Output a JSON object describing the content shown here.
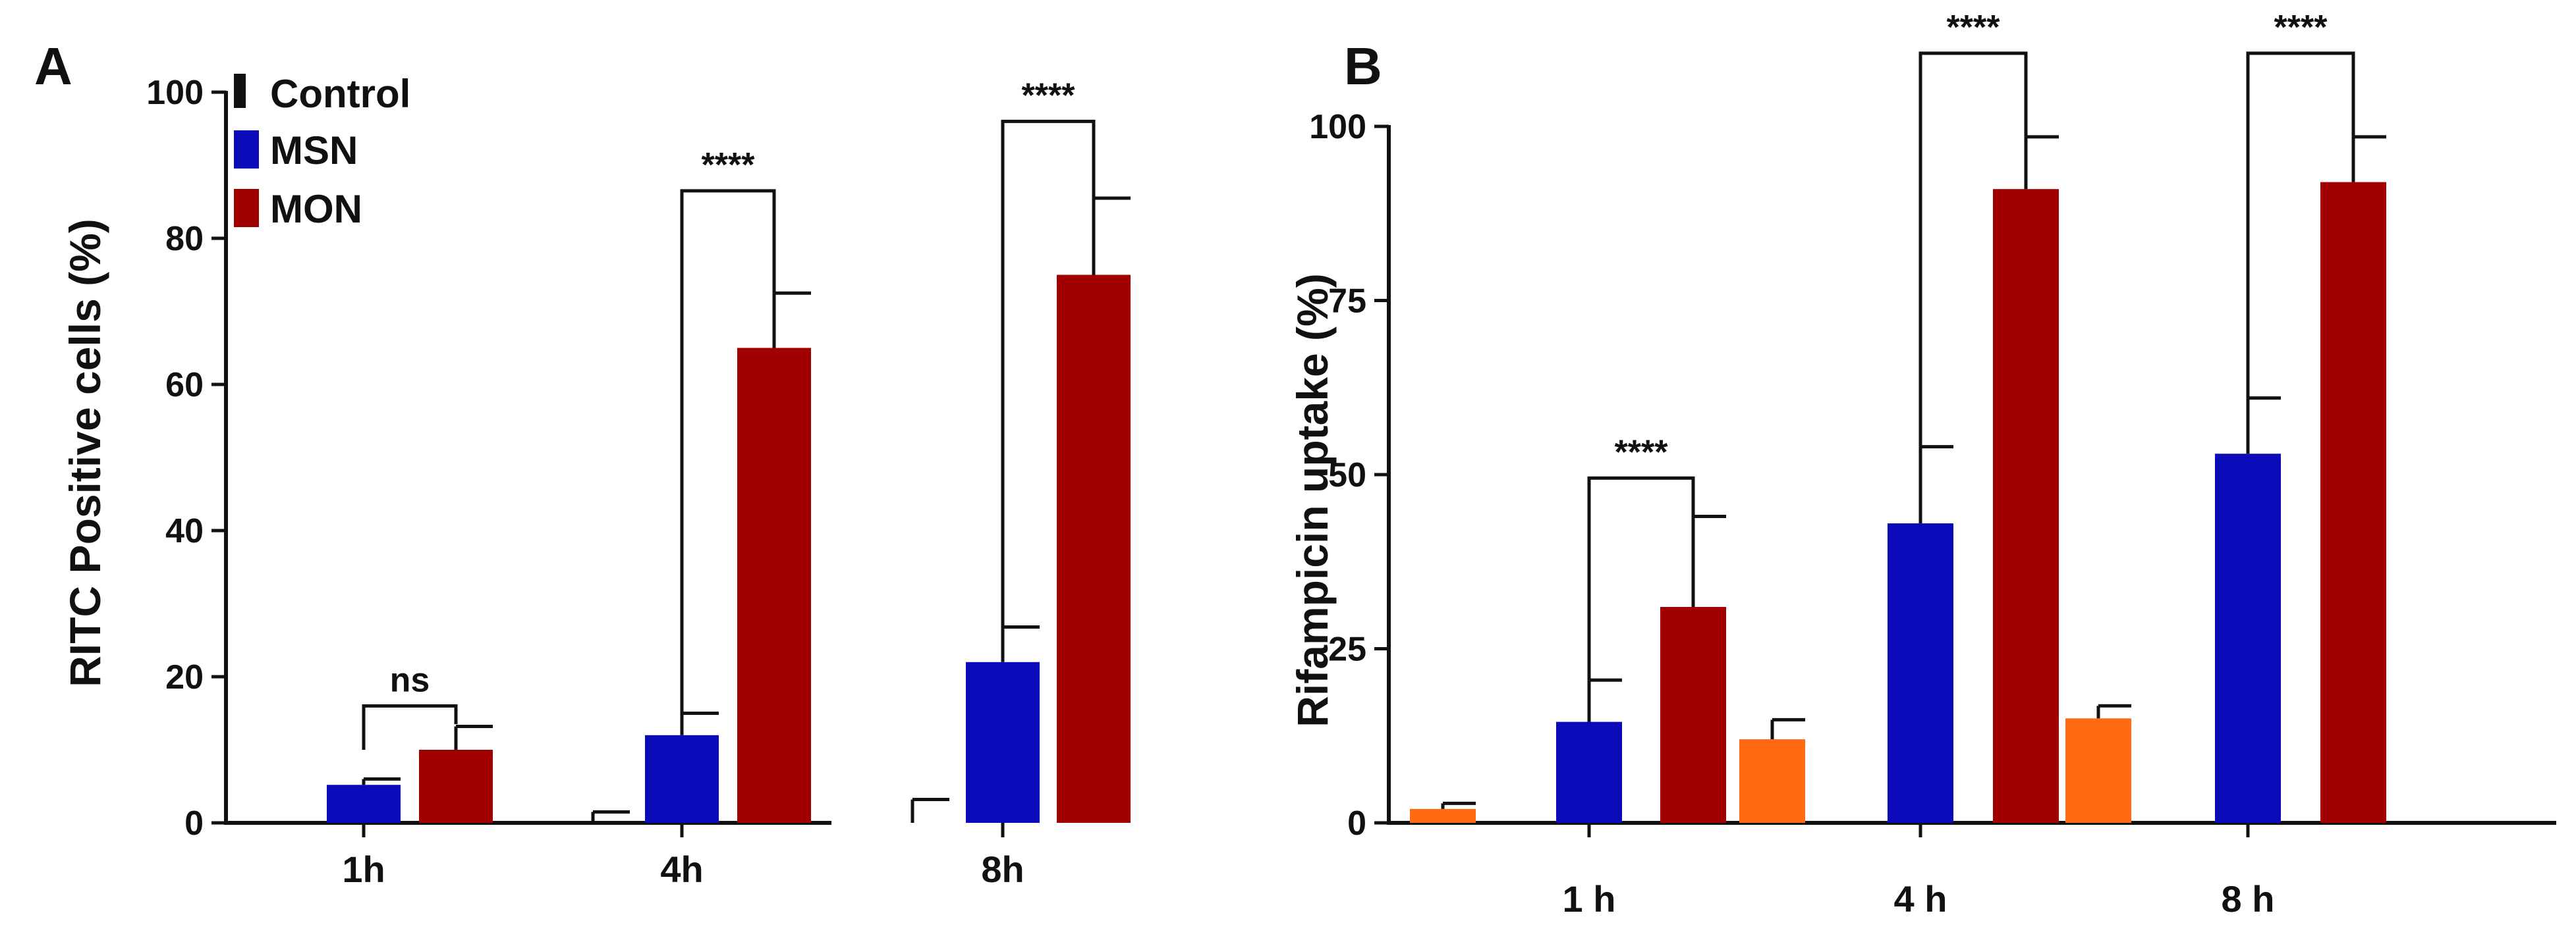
{
  "colors": {
    "control_a": "#111111",
    "control_b": "#ff6a13",
    "msn": "#0a0ab8",
    "mon": "#a00000",
    "axis": "#111111"
  },
  "chart_data": [
    {
      "panel": "A",
      "type": "bar",
      "title": "",
      "xlabel": "",
      "ylabel": "RITC Positive cells (%)",
      "ylim": [
        0,
        100
      ],
      "yticks": [
        "0",
        "20",
        "40",
        "60",
        "80",
        "100"
      ],
      "categories": [
        "1h",
        "4h",
        "8h"
      ],
      "legend": {
        "placement": "top-left",
        "items": [
          {
            "label": "Control",
            "color": "#111111"
          },
          {
            "label": "MSN",
            "color": "#0a0ab8"
          },
          {
            "label": "MON",
            "color": "#a00000"
          }
        ]
      },
      "series": [
        {
          "name": "Control",
          "color": "#111111",
          "values": [
            0,
            0,
            0
          ],
          "errors": [
            0,
            1.5,
            3.2
          ]
        },
        {
          "name": "MSN",
          "color": "#0a0ab8",
          "values": [
            5.2,
            12,
            22
          ],
          "errors": [
            0.8,
            3,
            4.8
          ]
        },
        {
          "name": "MON",
          "color": "#a00000",
          "values": [
            10,
            65,
            75
          ],
          "errors": [
            3.2,
            7.5,
            10.5
          ]
        }
      ],
      "annotations": [
        {
          "category": 0,
          "label": "ns",
          "bracket_left": 10,
          "bracket_right": 13.5,
          "top": 16
        },
        {
          "category": 1,
          "label": "****",
          "bracket_left": 15,
          "bracket_right": 72.5,
          "top": 86.5
        },
        {
          "category": 2,
          "label": "****",
          "bracket_left": 26.8,
          "bracket_right": 85.5,
          "top": 96
        }
      ]
    },
    {
      "panel": "B",
      "type": "bar",
      "title": "",
      "xlabel": "",
      "ylabel": "Rifampicin uptake (%)",
      "ylim": [
        0,
        100
      ],
      "yticks": [
        "0",
        "25",
        "50",
        "75",
        "100"
      ],
      "categories": [
        "1 h",
        "4 h",
        "8 h"
      ],
      "series": [
        {
          "name": "Control",
          "color": "#ff6a13",
          "values": [
            2,
            12,
            15
          ],
          "errors": [
            0.8,
            2.8,
            1.8
          ]
        },
        {
          "name": "MSN",
          "color": "#0a0ab8",
          "values": [
            14.5,
            43,
            53
          ],
          "errors": [
            6,
            11,
            8
          ]
        },
        {
          "name": "MON",
          "color": "#a00000",
          "values": [
            31,
            91,
            92
          ],
          "errors": [
            13,
            7.5,
            6.5
          ]
        }
      ],
      "annotations": [
        {
          "category": 0,
          "label": "****",
          "bracket_left": 20.5,
          "bracket_right": 44,
          "top": 49.5
        },
        {
          "category": 1,
          "label": "****",
          "bracket_left": 54,
          "bracket_right": 98.5,
          "top": 110.5
        },
        {
          "category": 2,
          "label": "****",
          "bracket_left": 61,
          "bracket_right": 98.5,
          "top": 110.5
        }
      ]
    }
  ]
}
